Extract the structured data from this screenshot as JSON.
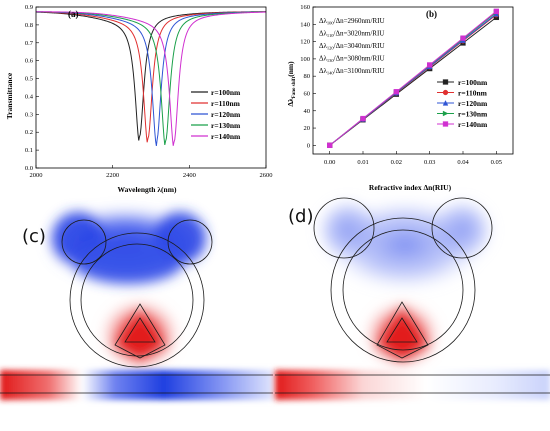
{
  "chart_data": [
    {
      "panel": "(a)",
      "type": "line",
      "xlabel": "Wavelength λ(nm)",
      "ylabel": "Transmittance",
      "xlim": [
        2000,
        2600
      ],
      "ylim": [
        0,
        0.9
      ],
      "xticks": [
        "2000",
        "2200",
        "2400",
        "2600"
      ],
      "yticks": [
        "0.0",
        "0.1",
        "0.2",
        "0.3",
        "0.4",
        "0.5",
        "0.6",
        "0.7",
        "0.8",
        "0.9"
      ],
      "legend_position": "bottom-right",
      "series": [
        {
          "name": "r=100nm",
          "color": "#222222",
          "dip_wavelength": 2270,
          "dip_min": 0.19
        },
        {
          "name": "r=110nm",
          "color": "#e03030",
          "dip_wavelength": 2292,
          "dip_min": 0.18
        },
        {
          "name": "r=120nm",
          "color": "#2f55d4",
          "dip_wavelength": 2315,
          "dip_min": 0.17
        },
        {
          "name": "r=130nm",
          "color": "#1ba04a",
          "dip_wavelength": 2338,
          "dip_min": 0.165
        },
        {
          "name": "r=140nm",
          "color": "#d030d0",
          "dip_wavelength": 2360,
          "dip_min": 0.16
        }
      ],
      "baseline": 0.875
    },
    {
      "panel": "(b)",
      "type": "line",
      "xlabel": "Refractive index  Δn(RIU)",
      "ylabel": "Δλ_Fano shift(nm)",
      "xlim": [
        -0.005,
        0.055
      ],
      "ylim": [
        -10,
        160
      ],
      "x": [
        0,
        0.01,
        0.02,
        0.03,
        0.04,
        0.05
      ],
      "xticks": [
        "0.00",
        "0.01",
        "0.02",
        "0.03",
        "0.04",
        "0.05"
      ],
      "yticks": [
        "0",
        "20",
        "40",
        "60",
        "80",
        "100",
        "120",
        "140",
        "160"
      ],
      "legend_position": "right",
      "annotations": [
        {
          "sub": "100",
          "value": "2960nm/RIU"
        },
        {
          "sub": "110",
          "value": "3020nm/RIU"
        },
        {
          "sub": "120",
          "value": "3040nm/RIU"
        },
        {
          "sub": "130",
          "value": "3080nm/RIU"
        },
        {
          "sub": "140",
          "value": "3100nm/RIU"
        }
      ],
      "series": [
        {
          "name": "r=100nm",
          "color": "#222222",
          "marker": "square",
          "values": [
            0,
            29.6,
            59.2,
            88.8,
            118.4,
            148
          ]
        },
        {
          "name": "r=110nm",
          "color": "#e03030",
          "marker": "circle",
          "values": [
            0,
            30.2,
            60.4,
            90.6,
            120.8,
            151
          ]
        },
        {
          "name": "r=120nm",
          "color": "#2f55d4",
          "marker": "triangle-up",
          "values": [
            0,
            30.4,
            60.8,
            91.2,
            121.6,
            152
          ]
        },
        {
          "name": "r=130nm",
          "color": "#1ba04a",
          "marker": "triangle-right",
          "values": [
            0,
            30.8,
            61.6,
            92.4,
            123.2,
            154
          ]
        },
        {
          "name": "r=140nm",
          "color": "#d030d0",
          "marker": "square",
          "values": [
            0,
            31,
            62,
            93,
            124,
            155
          ]
        }
      ]
    }
  ],
  "field_panels": [
    {
      "label": "(c)"
    },
    {
      "label": "(d)"
    }
  ],
  "colors": {
    "positive_field": "#e02020",
    "negative_field": "#2040e0",
    "background": "#ffffff"
  }
}
